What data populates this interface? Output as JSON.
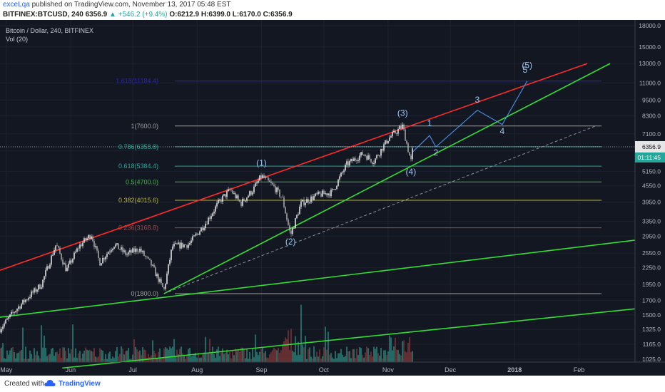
{
  "header": {
    "publisher": "exceLqa",
    "published_text": "published on TradingView.com, November 13, 2017 05:48 EST",
    "symbol_line": "BITFINEX:BTCUSD, 240",
    "last": "6356.9",
    "change": "+546.2 (+9.4%)",
    "open": "O:6212.9",
    "high": "H:6399.0",
    "low": "L:6170.0",
    "close": "C:6356.9"
  },
  "legend": {
    "title": "Bitcoin / Dollar, 240, BITFINEX",
    "volume": "Vol (20)"
  },
  "footer": {
    "created_with": "Created with",
    "brand": "TradingView"
  },
  "colors": {
    "background": "#131722",
    "uptrend_red": "#ff2a2a",
    "uptrend_green": "#33dd33",
    "projection": "#4a90e2",
    "fib_1618": "#2a2aaa",
    "candle_up": "#ffffff",
    "candle_down": "#b9b9b9"
  },
  "chart_data": {
    "type": "candlestick",
    "y_scale": "log",
    "ylim": [
      900,
      19000
    ],
    "x_axis_ticks": [
      "May",
      "Jun",
      "Jul",
      "Aug",
      "Sep",
      "Oct",
      "Nov",
      "Dec",
      "2018",
      "Feb"
    ],
    "y_axis_ticks": [
      "18000.0",
      "15000.0",
      "13000.0",
      "11000.0",
      "9500.0",
      "8300.0",
      "7100.0",
      "6150.0",
      "5150.0",
      "4550.0",
      "3950.0",
      "3350.0",
      "2950.0",
      "2550.0",
      "2250.0",
      "1950.0",
      "1700.0",
      "1500.0",
      "1325.0",
      "1165.0",
      "1025.0"
    ],
    "current_price_label": "6356.9",
    "countdown_label": "01:11:45",
    "price_path": [
      {
        "date": "2017-04-28",
        "price": 1330
      },
      {
        "date": "2017-05-05",
        "price": 1550
      },
      {
        "date": "2017-05-12",
        "price": 1760
      },
      {
        "date": "2017-05-18",
        "price": 1950
      },
      {
        "date": "2017-05-25",
        "price": 2750
      },
      {
        "date": "2017-05-30",
        "price": 2200
      },
      {
        "date": "2017-06-05",
        "price": 2700
      },
      {
        "date": "2017-06-11",
        "price": 3000
      },
      {
        "date": "2017-06-15",
        "price": 2350
      },
      {
        "date": "2017-06-22",
        "price": 2750
      },
      {
        "date": "2017-06-28",
        "price": 2520
      },
      {
        "date": "2017-07-04",
        "price": 2650
      },
      {
        "date": "2017-07-10",
        "price": 2300
      },
      {
        "date": "2017-07-16",
        "price": 1850
      },
      {
        "date": "2017-07-20",
        "price": 2700
      },
      {
        "date": "2017-07-28",
        "price": 2750
      },
      {
        "date": "2017-08-05",
        "price": 3300
      },
      {
        "date": "2017-08-12",
        "price": 4000
      },
      {
        "date": "2017-08-17",
        "price": 4400
      },
      {
        "date": "2017-08-22",
        "price": 3900
      },
      {
        "date": "2017-08-28",
        "price": 4400
      },
      {
        "date": "2017-09-01",
        "price": 4950
      },
      {
        "date": "2017-09-07",
        "price": 4500
      },
      {
        "date": "2017-09-11",
        "price": 4100
      },
      {
        "date": "2017-09-15",
        "price": 2970
      },
      {
        "date": "2017-09-20",
        "price": 3900
      },
      {
        "date": "2017-09-28",
        "price": 4200
      },
      {
        "date": "2017-10-05",
        "price": 4300
      },
      {
        "date": "2017-10-12",
        "price": 5450
      },
      {
        "date": "2017-10-20",
        "price": 6000
      },
      {
        "date": "2017-10-25",
        "price": 5600
      },
      {
        "date": "2017-11-01",
        "price": 6800
      },
      {
        "date": "2017-11-08",
        "price": 7600
      },
      {
        "date": "2017-11-12",
        "price": 5600
      },
      {
        "date": "2017-11-13",
        "price": 6356.9
      }
    ],
    "fibonacci_levels": [
      {
        "label": "1.618(11184.4)",
        "price": 11184.4
      },
      {
        "label": "1(7600.0)",
        "price": 7600.0
      },
      {
        "label": "0.786(6358.8)",
        "price": 6358.8
      },
      {
        "label": "0.618(5384.4)",
        "price": 5384.4
      },
      {
        "label": "0.5(4700.0)",
        "price": 4700.0
      },
      {
        "label": "0.382(4015.6)",
        "price": 4015.6
      },
      {
        "label": "0.236(3168.8)",
        "price": 3168.8
      },
      {
        "label": "0(1800.0)",
        "price": 1800.0
      }
    ],
    "wave_labels": [
      {
        "text": "(1)",
        "date": "2017-09-01",
        "price": 5400
      },
      {
        "text": "(2)",
        "date": "2017-09-15",
        "price": 2750
      },
      {
        "text": "(3)",
        "date": "2017-11-08",
        "price": 8300
      },
      {
        "text": "(4)",
        "date": "2017-11-12",
        "price": 5000
      },
      {
        "text": "(5)",
        "date": "2018-01-07",
        "price": 12500
      }
    ],
    "projection_path": [
      {
        "date": "2017-11-13",
        "price": 6100
      },
      {
        "date": "2017-11-21",
        "price": 7000
      },
      {
        "date": "2017-11-24",
        "price": 6350
      },
      {
        "date": "2017-12-14",
        "price": 8700
      },
      {
        "date": "2017-12-26",
        "price": 7700
      },
      {
        "date": "2018-01-07",
        "price": 11184
      }
    ],
    "projection_labels": [
      {
        "text": "1",
        "date": "2017-11-21",
        "price": 7600
      },
      {
        "text": "2",
        "date": "2017-11-24",
        "price": 5900
      },
      {
        "text": "3",
        "date": "2017-12-14",
        "price": 9300
      },
      {
        "text": "4",
        "date": "2017-12-26",
        "price": 7100
      },
      {
        "text": "5",
        "date": "2018-01-06",
        "price": 12000
      }
    ],
    "trendlines": [
      {
        "color": "red",
        "from": {
          "date": "2017-04-28",
          "price": 2200
        },
        "to": {
          "date": "2018-02-05",
          "price": 13000
        }
      },
      {
        "color": "green",
        "from": {
          "date": "2017-07-16",
          "price": 1800
        },
        "to": {
          "date": "2018-02-16",
          "price": 13000
        }
      },
      {
        "color": "green",
        "from": {
          "date": "2017-04-28",
          "price": 1470
        },
        "to": {
          "date": "2018-02-28",
          "price": 2850
        }
      },
      {
        "color": "green",
        "from": {
          "date": "2017-05-28",
          "price": 950
        },
        "to": {
          "date": "2018-02-28",
          "price": 1580
        }
      },
      {
        "color": "grey-dashed",
        "from": {
          "date": "2017-07-16",
          "price": 1800
        },
        "to": {
          "date": "2018-02-09",
          "price": 7600
        }
      }
    ]
  }
}
